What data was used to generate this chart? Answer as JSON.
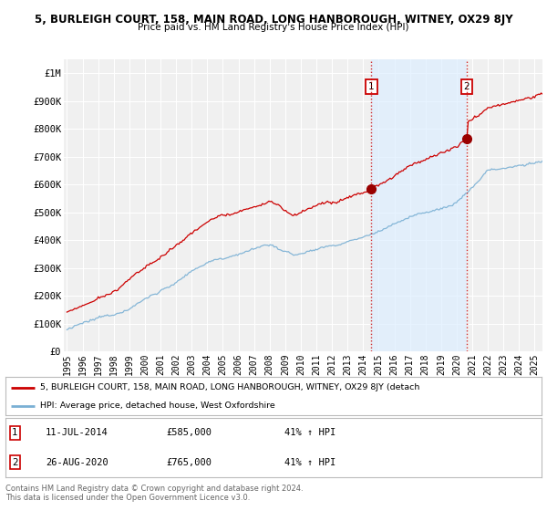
{
  "title": "5, BURLEIGH COURT, 158, MAIN ROAD, LONG HANBOROUGH, WITNEY, OX29 8JY",
  "subtitle": "Price paid vs. HM Land Registry's House Price Index (HPI)",
  "ylabel_ticks": [
    "£0",
    "£100K",
    "£200K",
    "£300K",
    "£400K",
    "£500K",
    "£600K",
    "£700K",
    "£800K",
    "£900K",
    "£1M"
  ],
  "ytick_vals": [
    0,
    100000,
    200000,
    300000,
    400000,
    500000,
    600000,
    700000,
    800000,
    900000,
    1000000
  ],
  "ylim": [
    0,
    1050000
  ],
  "xlim_start": 1994.8,
  "xlim_end": 2025.5,
  "red_line_color": "#cc0000",
  "blue_line_color": "#7ab0d4",
  "shade_color": "#ddeeff",
  "marker1_date": 2014.53,
  "marker1_price": 585000,
  "marker2_date": 2020.65,
  "marker2_price": 765000,
  "marker1_label": "1",
  "marker2_label": "2",
  "vline1_x": 2014.53,
  "vline2_x": 2020.65,
  "legend_red_label": "5, BURLEIGH COURT, 158, MAIN ROAD, LONG HANBOROUGH, WITNEY, OX29 8JY (detach",
  "legend_blue_label": "HPI: Average price, detached house, West Oxfordshire",
  "footer": "Contains HM Land Registry data © Crown copyright and database right 2024.\nThis data is licensed under the Open Government Licence v3.0.",
  "bg_color": "#ffffff",
  "plot_bg_color": "#f0f0f0",
  "grid_color": "#ffffff"
}
